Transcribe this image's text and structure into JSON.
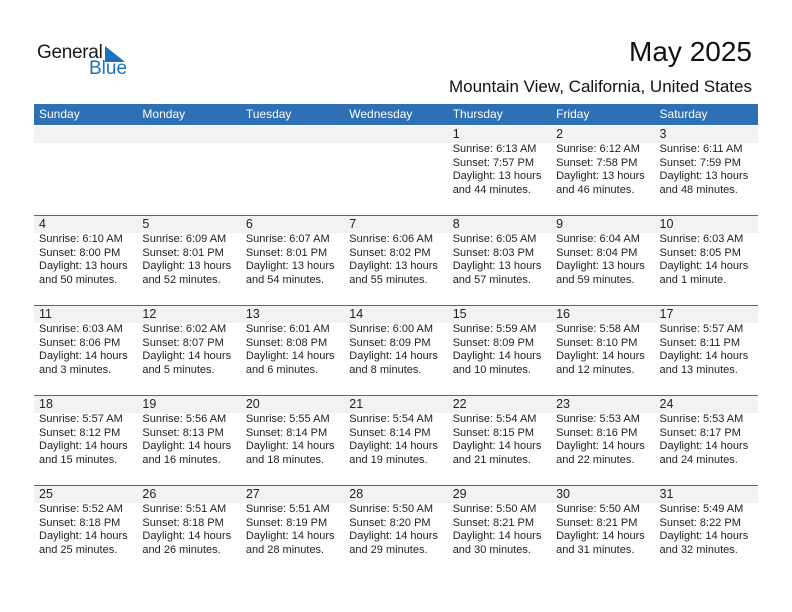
{
  "logo": {
    "text1": "General",
    "text2": "Blue"
  },
  "title": "May 2025",
  "subtitle": "Mountain View, California, United States",
  "colors": {
    "header": "#2e70b4",
    "logo_blue": "#1a73c2",
    "strip": "#f2f2f2"
  },
  "weekdays": [
    "Sunday",
    "Monday",
    "Tuesday",
    "Wednesday",
    "Thursday",
    "Friday",
    "Saturday"
  ],
  "weeks": [
    [
      null,
      null,
      null,
      null,
      {
        "day": "1",
        "sunrise": "Sunrise: 6:13 AM",
        "sunset": "Sunset: 7:57 PM",
        "daylight": "Daylight: 13 hours",
        "minutes": "and 44 minutes."
      },
      {
        "day": "2",
        "sunrise": "Sunrise: 6:12 AM",
        "sunset": "Sunset: 7:58 PM",
        "daylight": "Daylight: 13 hours",
        "minutes": "and 46 minutes."
      },
      {
        "day": "3",
        "sunrise": "Sunrise: 6:11 AM",
        "sunset": "Sunset: 7:59 PM",
        "daylight": "Daylight: 13 hours",
        "minutes": "and 48 minutes."
      }
    ],
    [
      {
        "day": "4",
        "sunrise": "Sunrise: 6:10 AM",
        "sunset": "Sunset: 8:00 PM",
        "daylight": "Daylight: 13 hours",
        "minutes": "and 50 minutes."
      },
      {
        "day": "5",
        "sunrise": "Sunrise: 6:09 AM",
        "sunset": "Sunset: 8:01 PM",
        "daylight": "Daylight: 13 hours",
        "minutes": "and 52 minutes."
      },
      {
        "day": "6",
        "sunrise": "Sunrise: 6:07 AM",
        "sunset": "Sunset: 8:01 PM",
        "daylight": "Daylight: 13 hours",
        "minutes": "and 54 minutes."
      },
      {
        "day": "7",
        "sunrise": "Sunrise: 6:06 AM",
        "sunset": "Sunset: 8:02 PM",
        "daylight": "Daylight: 13 hours",
        "minutes": "and 55 minutes."
      },
      {
        "day": "8",
        "sunrise": "Sunrise: 6:05 AM",
        "sunset": "Sunset: 8:03 PM",
        "daylight": "Daylight: 13 hours",
        "minutes": "and 57 minutes."
      },
      {
        "day": "9",
        "sunrise": "Sunrise: 6:04 AM",
        "sunset": "Sunset: 8:04 PM",
        "daylight": "Daylight: 13 hours",
        "minutes": "and 59 minutes."
      },
      {
        "day": "10",
        "sunrise": "Sunrise: 6:03 AM",
        "sunset": "Sunset: 8:05 PM",
        "daylight": "Daylight: 14 hours",
        "minutes": "and 1 minute."
      }
    ],
    [
      {
        "day": "11",
        "sunrise": "Sunrise: 6:03 AM",
        "sunset": "Sunset: 8:06 PM",
        "daylight": "Daylight: 14 hours",
        "minutes": "and 3 minutes."
      },
      {
        "day": "12",
        "sunrise": "Sunrise: 6:02 AM",
        "sunset": "Sunset: 8:07 PM",
        "daylight": "Daylight: 14 hours",
        "minutes": "and 5 minutes."
      },
      {
        "day": "13",
        "sunrise": "Sunrise: 6:01 AM",
        "sunset": "Sunset: 8:08 PM",
        "daylight": "Daylight: 14 hours",
        "minutes": "and 6 minutes."
      },
      {
        "day": "14",
        "sunrise": "Sunrise: 6:00 AM",
        "sunset": "Sunset: 8:09 PM",
        "daylight": "Daylight: 14 hours",
        "minutes": "and 8 minutes."
      },
      {
        "day": "15",
        "sunrise": "Sunrise: 5:59 AM",
        "sunset": "Sunset: 8:09 PM",
        "daylight": "Daylight: 14 hours",
        "minutes": "and 10 minutes."
      },
      {
        "day": "16",
        "sunrise": "Sunrise: 5:58 AM",
        "sunset": "Sunset: 8:10 PM",
        "daylight": "Daylight: 14 hours",
        "minutes": "and 12 minutes."
      },
      {
        "day": "17",
        "sunrise": "Sunrise: 5:57 AM",
        "sunset": "Sunset: 8:11 PM",
        "daylight": "Daylight: 14 hours",
        "minutes": "and 13 minutes."
      }
    ],
    [
      {
        "day": "18",
        "sunrise": "Sunrise: 5:57 AM",
        "sunset": "Sunset: 8:12 PM",
        "daylight": "Daylight: 14 hours",
        "minutes": "and 15 minutes."
      },
      {
        "day": "19",
        "sunrise": "Sunrise: 5:56 AM",
        "sunset": "Sunset: 8:13 PM",
        "daylight": "Daylight: 14 hours",
        "minutes": "and 16 minutes."
      },
      {
        "day": "20",
        "sunrise": "Sunrise: 5:55 AM",
        "sunset": "Sunset: 8:14 PM",
        "daylight": "Daylight: 14 hours",
        "minutes": "and 18 minutes."
      },
      {
        "day": "21",
        "sunrise": "Sunrise: 5:54 AM",
        "sunset": "Sunset: 8:14 PM",
        "daylight": "Daylight: 14 hours",
        "minutes": "and 19 minutes."
      },
      {
        "day": "22",
        "sunrise": "Sunrise: 5:54 AM",
        "sunset": "Sunset: 8:15 PM",
        "daylight": "Daylight: 14 hours",
        "minutes": "and 21 minutes."
      },
      {
        "day": "23",
        "sunrise": "Sunrise: 5:53 AM",
        "sunset": "Sunset: 8:16 PM",
        "daylight": "Daylight: 14 hours",
        "minutes": "and 22 minutes."
      },
      {
        "day": "24",
        "sunrise": "Sunrise: 5:53 AM",
        "sunset": "Sunset: 8:17 PM",
        "daylight": "Daylight: 14 hours",
        "minutes": "and 24 minutes."
      }
    ],
    [
      {
        "day": "25",
        "sunrise": "Sunrise: 5:52 AM",
        "sunset": "Sunset: 8:18 PM",
        "daylight": "Daylight: 14 hours",
        "minutes": "and 25 minutes."
      },
      {
        "day": "26",
        "sunrise": "Sunrise: 5:51 AM",
        "sunset": "Sunset: 8:18 PM",
        "daylight": "Daylight: 14 hours",
        "minutes": "and 26 minutes."
      },
      {
        "day": "27",
        "sunrise": "Sunrise: 5:51 AM",
        "sunset": "Sunset: 8:19 PM",
        "daylight": "Daylight: 14 hours",
        "minutes": "and 28 minutes."
      },
      {
        "day": "28",
        "sunrise": "Sunrise: 5:50 AM",
        "sunset": "Sunset: 8:20 PM",
        "daylight": "Daylight: 14 hours",
        "minutes": "and 29 minutes."
      },
      {
        "day": "29",
        "sunrise": "Sunrise: 5:50 AM",
        "sunset": "Sunset: 8:21 PM",
        "daylight": "Daylight: 14 hours",
        "minutes": "and 30 minutes."
      },
      {
        "day": "30",
        "sunrise": "Sunrise: 5:50 AM",
        "sunset": "Sunset: 8:21 PM",
        "daylight": "Daylight: 14 hours",
        "minutes": "and 31 minutes."
      },
      {
        "day": "31",
        "sunrise": "Sunrise: 5:49 AM",
        "sunset": "Sunset: 8:22 PM",
        "daylight": "Daylight: 14 hours",
        "minutes": "and 32 minutes."
      }
    ]
  ]
}
